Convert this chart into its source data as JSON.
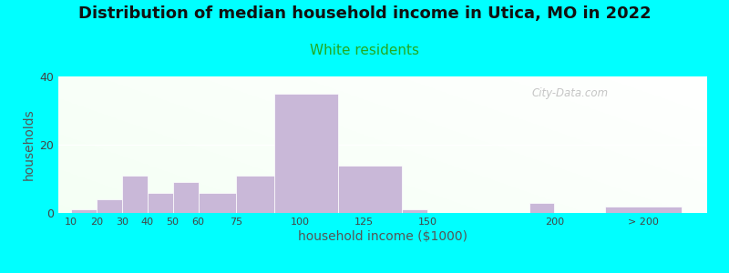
{
  "title": "Distribution of median household income in Utica, MO in 2022",
  "subtitle": "White residents",
  "xlabel": "household income ($1000)",
  "ylabel": "households",
  "title_fontsize": 13,
  "subtitle_fontsize": 11,
  "subtitle_color": "#22aa22",
  "bar_color": "#c9b8d8",
  "background_color": "#00ffff",
  "ylim": [
    0,
    40
  ],
  "yticks": [
    0,
    20,
    40
  ],
  "bar_heights": [
    1,
    4,
    11,
    6,
    9,
    6,
    11,
    35,
    14,
    1,
    3,
    2
  ],
  "bar_lefts": [
    10,
    20,
    30,
    40,
    50,
    60,
    75,
    90,
    115,
    140,
    190,
    220
  ],
  "bar_widths": [
    10,
    10,
    10,
    10,
    10,
    15,
    15,
    25,
    25,
    10,
    10,
    30
  ],
  "xtick_labels": [
    "10",
    "20",
    "30",
    "40",
    "50",
    "60",
    "75",
    "100",
    "125",
    "150",
    "200",
    "> 200"
  ],
  "xtick_positions": [
    10,
    20,
    30,
    40,
    50,
    60,
    75,
    100,
    125,
    150,
    200,
    235
  ],
  "xlim": [
    5,
    260
  ],
  "watermark": "City-Data.com"
}
